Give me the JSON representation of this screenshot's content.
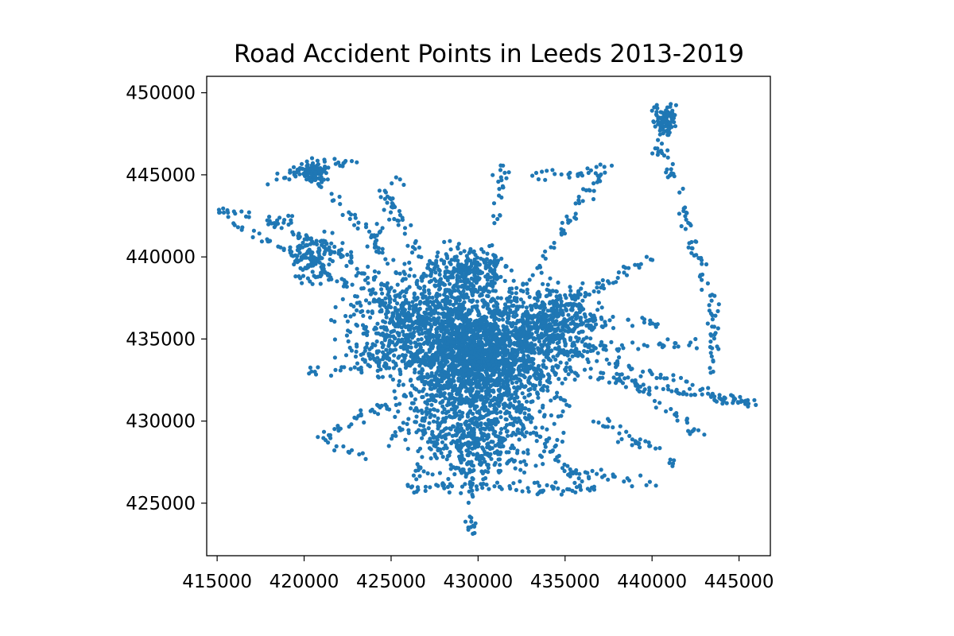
{
  "chart_data": {
    "type": "scatter",
    "title": "Road Accident Points in Leeds 2013-2019",
    "xlabel": "",
    "ylabel": "",
    "xlim": [
      414400,
      446800
    ],
    "ylim": [
      421800,
      451000
    ],
    "x_ticks": [
      415000,
      420000,
      425000,
      430000,
      435000,
      440000,
      445000
    ],
    "x_tick_labels": [
      "415000",
      "420000",
      "425000",
      "430000",
      "435000",
      "440000",
      "445000"
    ],
    "y_ticks": [
      425000,
      430000,
      435000,
      440000,
      445000,
      450000
    ],
    "y_tick_labels": [
      "425000",
      "430000",
      "435000",
      "440000",
      "445000",
      "450000"
    ],
    "grid": false,
    "legend": "none",
    "color": "#1f77b4",
    "marker": "circle",
    "series": [
      {
        "description_points": "dense road-network point cloud centred on Leeds city centre (~430000, 434000)",
        "roads": [
          [
            [
              430000,
              434000
            ],
            [
              420000,
              445500
            ]
          ],
          [
            [
              430000,
              434000
            ],
            [
              421500,
              440500
            ]
          ],
          [
            [
              430000,
              434000
            ],
            [
              416000,
              442000
            ]
          ],
          [
            [
              430000,
              434000
            ],
            [
              422000,
              434000
            ]
          ],
          [
            [
              430000,
              434000
            ],
            [
              420000,
              433000
            ]
          ],
          [
            [
              430000,
              434000
            ],
            [
              424500,
              428500
            ]
          ],
          [
            [
              430000,
              434000
            ],
            [
              421000,
              429000
            ]
          ],
          [
            [
              430000,
              434000
            ],
            [
              426000,
              425500
            ]
          ],
          [
            [
              430000,
              434000
            ],
            [
              429500,
              423000
            ]
          ],
          [
            [
              430000,
              434000
            ],
            [
              436000,
              426000
            ]
          ],
          [
            [
              430000,
              434000
            ],
            [
              441500,
              427500
            ]
          ],
          [
            [
              430000,
              434000
            ],
            [
              445800,
              431000
            ]
          ],
          [
            [
              430000,
              434000
            ],
            [
              443000,
              434800
            ]
          ],
          [
            [
              430000,
              434000
            ],
            [
              440000,
              440000
            ]
          ],
          [
            [
              430000,
              434000
            ],
            [
              437000,
              445000
            ]
          ],
          [
            [
              430000,
              434000
            ],
            [
              431500,
              445800
            ]
          ],
          [
            [
              430000,
              434000
            ],
            [
              427500,
              440000
            ]
          ],
          [
            [
              430000,
              434000
            ],
            [
              424500,
              444000
            ]
          ],
          [
            [
              436000,
              436000
            ],
            [
              440500,
              436000
            ]
          ],
          [
            [
              438000,
              433000
            ],
            [
              443000,
              429000
            ]
          ],
          [
            [
              440000,
              446000
            ],
            [
              441500,
              449500
            ]
          ],
          [
            [
              440500,
              447000
            ],
            [
              443500,
              437000
            ]
          ],
          [
            [
              443500,
              437000
            ],
            [
              443500,
              432000
            ]
          ],
          [
            [
              435000,
              434500
            ],
            [
              445800,
              431000
            ]
          ],
          [
            [
              418000,
              444500
            ],
            [
              423000,
              446000
            ]
          ],
          [
            [
              415000,
              442800
            ],
            [
              420000,
              442000
            ]
          ],
          [
            [
              426000,
              426000
            ],
            [
              437000,
              425800
            ]
          ],
          [
            [
              433000,
              445000
            ],
            [
              438000,
              445200
            ]
          ],
          [
            [
              421000,
              429000
            ],
            [
              423500,
              427800
            ]
          ],
          [
            [
              435000,
              427000
            ],
            [
              440000,
              426200
            ]
          ],
          [
            [
              424000,
              440500
            ],
            [
              425500,
              444700
            ]
          ],
          [
            [
              418000,
              442000
            ],
            [
              423000,
              440000
            ]
          ]
        ],
        "clusters": [
          {
            "x": 430000,
            "y": 434000,
            "rx": 4000,
            "ry": 4000,
            "n": 1800
          },
          {
            "x": 426000,
            "y": 436000,
            "rx": 3500,
            "ry": 3000,
            "n": 500
          },
          {
            "x": 434500,
            "y": 436000,
            "rx": 2500,
            "ry": 2200,
            "n": 400
          },
          {
            "x": 420500,
            "y": 445200,
            "rx": 900,
            "ry": 600,
            "n": 80
          },
          {
            "x": 440700,
            "y": 448200,
            "rx": 700,
            "ry": 800,
            "n": 70
          },
          {
            "x": 420500,
            "y": 440000,
            "rx": 1200,
            "ry": 1500,
            "n": 120
          },
          {
            "x": 430000,
            "y": 429000,
            "rx": 3500,
            "ry": 2500,
            "n": 450
          },
          {
            "x": 429500,
            "y": 439000,
            "rx": 2000,
            "ry": 1500,
            "n": 250
          }
        ]
      }
    ]
  }
}
